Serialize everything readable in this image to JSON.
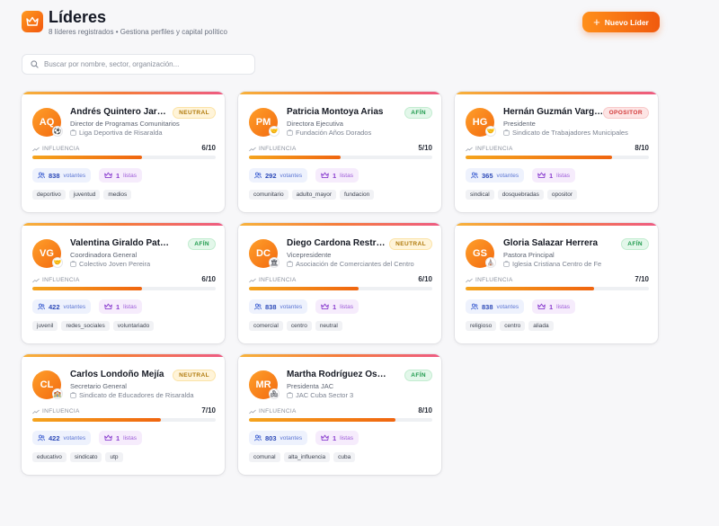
{
  "page": {
    "title": "Líderes",
    "subtitle": "8 líderes registrados • Gestiona perfiles y capital político",
    "new_button_label": "Nuevo Líder",
    "search_placeholder": "Buscar por nombre, sector, organización..."
  },
  "labels": {
    "influence": "INFLUENCIA",
    "votes_suffix": "votantes",
    "lists_suffix": "listas"
  },
  "colors": {
    "accent": "#f26a10",
    "neutral": "#b07a0c",
    "afin": "#1f9a4d",
    "opositor": "#d23a3a"
  },
  "leaders": [
    {
      "initials": "AQ",
      "name": "Andrés Quintero Jaramillo",
      "role": "Director de Programas Comunitarios",
      "org": "Liga Deportiva de Risaralda",
      "status": "NEUTRAL",
      "status_class": "neutral",
      "badge_icon": "soccer-ball-icon",
      "badge": "⚽",
      "influence": "6/10",
      "influence_pct": 60,
      "votes": "838",
      "lists": "1",
      "tags": [
        "deportivo",
        "juventud",
        "medios"
      ]
    },
    {
      "initials": "PM",
      "name": "Patricia Montoya Arias",
      "role": "Directora Ejecutiva",
      "org": "Fundación Años Dorados",
      "status": "AFÍN",
      "status_class": "afin",
      "badge_icon": "handshake-icon",
      "badge": "🤝",
      "influence": "5/10",
      "influence_pct": 50,
      "votes": "292",
      "lists": "1",
      "tags": [
        "comunitario",
        "adulto_mayor",
        "fundacion"
      ]
    },
    {
      "initials": "HG",
      "name": "Hernán Guzmán Vargas",
      "role": "Presidente",
      "org": "Sindicato de Trabajadores Municipales",
      "status": "OPOSITOR",
      "status_class": "opositor",
      "badge_icon": "handshake-icon",
      "badge": "🤝",
      "influence": "8/10",
      "influence_pct": 80,
      "votes": "365",
      "lists": "1",
      "tags": [
        "sindical",
        "dosquebradas",
        "opositor"
      ]
    },
    {
      "initials": "VG",
      "name": "Valentina Giraldo Patiño",
      "role": "Coordinadora General",
      "org": "Colectivo Joven Pereira",
      "status": "AFÍN",
      "status_class": "afin",
      "badge_icon": "handshake-icon",
      "badge": "🤝",
      "influence": "6/10",
      "influence_pct": 60,
      "votes": "422",
      "lists": "1",
      "tags": [
        "juvenil",
        "redes_sociales",
        "voluntariado"
      ]
    },
    {
      "initials": "DC",
      "name": "Diego Cardona Restrepo",
      "role": "Vicepresidente",
      "org": "Asociación de Comerciantes del Centro",
      "status": "NEUTRAL",
      "status_class": "neutral",
      "badge_icon": "building-icon",
      "badge": "🏛",
      "influence": "6/10",
      "influence_pct": 60,
      "votes": "838",
      "lists": "1",
      "tags": [
        "comercial",
        "centro",
        "neutral"
      ]
    },
    {
      "initials": "GS",
      "name": "Gloria Salazar Herrera",
      "role": "Pastora Principal",
      "org": "Iglesia Cristiana Centro de Fe",
      "status": "AFÍN",
      "status_class": "afin",
      "badge_icon": "church-icon",
      "badge": "⛪",
      "influence": "7/10",
      "influence_pct": 70,
      "votes": "838",
      "lists": "1",
      "tags": [
        "religioso",
        "centro",
        "aliada"
      ]
    },
    {
      "initials": "CL",
      "name": "Carlos Londoño Mejía",
      "role": "Secretario General",
      "org": "Sindicato de Educadores de Risaralda",
      "status": "NEUTRAL",
      "status_class": "neutral",
      "badge_icon": "school-icon",
      "badge": "🏫",
      "influence": "7/10",
      "influence_pct": 70,
      "votes": "422",
      "lists": "1",
      "tags": [
        "educativo",
        "sindicato",
        "utp"
      ]
    },
    {
      "initials": "MR",
      "name": "Martha Rodríguez Ospina",
      "role": "Presidenta JAC",
      "org": "JAC Cuba Sector 3",
      "status": "AFÍN",
      "status_class": "afin",
      "badge_icon": "community-icon",
      "badge": "🏘",
      "influence": "8/10",
      "influence_pct": 80,
      "votes": "803",
      "lists": "1",
      "tags": [
        "comunal",
        "alta_influencia",
        "cuba"
      ]
    }
  ]
}
